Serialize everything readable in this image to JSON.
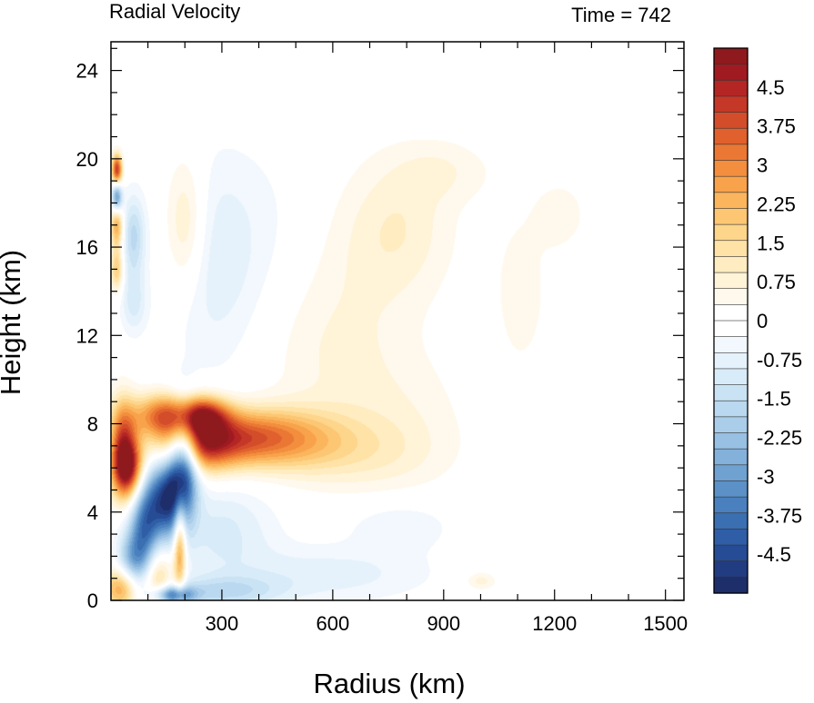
{
  "chart_data": {
    "type": "heatmap",
    "title": "Radial Velocity",
    "subtitle": "Time = 742",
    "xlabel": "Radius (km)",
    "ylabel": "Height (km)",
    "xlim": [
      0,
      1550
    ],
    "ylim": [
      0,
      25.3
    ],
    "x_ticks": [
      300,
      600,
      900,
      1200,
      1500
    ],
    "y_ticks": [
      0,
      4,
      8,
      12,
      16,
      20,
      24
    ],
    "colorbar": {
      "range": [
        -5.25,
        5.25
      ],
      "ticks": [
        4.5,
        3.75,
        3,
        2.25,
        1.5,
        0.75,
        0,
        -0.75,
        -1.5,
        -2.25,
        -3,
        -3.75,
        -4.5
      ],
      "colors": [
        "#1e2e6a",
        "#223c82",
        "#264c96",
        "#2f5ea6",
        "#3a6fb2",
        "#4a80bd",
        "#5b91c7",
        "#6fa1d1",
        "#84b1da",
        "#98c0e2",
        "#aacde9",
        "#bad8ef",
        "#c9e2f4",
        "#d8ebf8",
        "#e6f2fb",
        "#f2f8fd",
        "#ffffff",
        "#ffffff",
        "#fff9ed",
        "#fff3d8",
        "#ffecc0",
        "#fee2a6",
        "#fdd58b",
        "#fcc672",
        "#fab55d",
        "#f8a24b",
        "#f28e3d",
        "#ea7834",
        "#e0612d",
        "#d44d2a",
        "#c53827",
        "#b42624",
        "#a01b21",
        "#8e1a1e"
      ]
    },
    "features": [
      {
        "r": 45,
        "z": 6.0,
        "sr": 30,
        "sz": 1.0,
        "v": 4.6
      },
      {
        "r": 30,
        "z": 7.2,
        "sr": 25,
        "sz": 1.4,
        "v": 2.8
      },
      {
        "r": 150,
        "z": 8.4,
        "sr": 70,
        "sz": 0.7,
        "v": 3.3
      },
      {
        "r": 230,
        "z": 7.1,
        "sr": 75,
        "sz": 0.9,
        "v": 3.8
      },
      {
        "r": 250,
        "z": 8.4,
        "sr": 50,
        "sz": 0.6,
        "v": 3.0
      },
      {
        "r": 360,
        "z": 7.4,
        "sr": 100,
        "sz": 0.9,
        "v": 2.6
      },
      {
        "r": 500,
        "z": 7.3,
        "sr": 110,
        "sz": 1.0,
        "v": 1.6
      },
      {
        "r": 680,
        "z": 6.6,
        "sr": 150,
        "sz": 1.2,
        "v": 0.7
      },
      {
        "r": 90,
        "z": 3.0,
        "sr": 30,
        "sz": 1.8,
        "v": -3.8
      },
      {
        "r": 50,
        "z": 1.7,
        "sr": 28,
        "sz": 0.9,
        "v": -1.9
      },
      {
        "r": 150,
        "z": 4.6,
        "sr": 35,
        "sz": 1.3,
        "v": -4.2
      },
      {
        "r": 195,
        "z": 6.3,
        "sr": 28,
        "sz": 1.6,
        "v": -4.7
      },
      {
        "r": 120,
        "z": 1.0,
        "sr": 30,
        "sz": 1.3,
        "v": 2.6
      },
      {
        "r": 30,
        "z": 0.6,
        "sr": 35,
        "sz": 0.7,
        "v": 3.0
      },
      {
        "r": 185,
        "z": 2.6,
        "sr": 12,
        "sz": 1.6,
        "v": 3.2
      },
      {
        "r": 165,
        "z": 0.25,
        "sr": 40,
        "sz": 0.3,
        "v": -3.6
      },
      {
        "r": 300,
        "z": 0.4,
        "sr": 110,
        "sz": 0.5,
        "v": -1.4
      },
      {
        "r": 580,
        "z": 1.2,
        "sr": 200,
        "sz": 0.9,
        "v": -0.8
      },
      {
        "r": 300,
        "z": 3.2,
        "sr": 100,
        "sz": 1.5,
        "v": -1.0
      },
      {
        "r": 15,
        "z": 19.5,
        "sr": 10,
        "sz": 0.5,
        "v": 4.3
      },
      {
        "r": 15,
        "z": 18.3,
        "sr": 10,
        "sz": 0.5,
        "v": -3.4
      },
      {
        "r": 15,
        "z": 17.0,
        "sr": 12,
        "sz": 0.7,
        "v": 2.6
      },
      {
        "r": 15,
        "z": 15.0,
        "sr": 12,
        "sz": 0.7,
        "v": 2.0
      },
      {
        "r": 60,
        "z": 16.5,
        "sr": 22,
        "sz": 1.3,
        "v": -1.6
      },
      {
        "r": 60,
        "z": 13.5,
        "sr": 25,
        "sz": 1.0,
        "v": -1.0
      },
      {
        "r": 200,
        "z": 17.0,
        "sr": 40,
        "sz": 2.2,
        "v": 1.3
      },
      {
        "r": 270,
        "z": 15.0,
        "sr": 90,
        "sz": 3.5,
        "v": -0.7
      },
      {
        "r": 430,
        "z": 16.5,
        "sr": 150,
        "sz": 3.0,
        "v": -0.5
      },
      {
        "r": 620,
        "z": 15.5,
        "sr": 160,
        "sz": 3.0,
        "v": 0.5
      },
      {
        "r": 780,
        "z": 17.0,
        "sr": 100,
        "sz": 2.2,
        "v": 0.7
      },
      {
        "r": 900,
        "z": 19.5,
        "sr": 90,
        "sz": 1.0,
        "v": 0.5
      },
      {
        "r": 1110,
        "z": 14.0,
        "sr": 70,
        "sz": 3.5,
        "v": 0.4
      },
      {
        "r": 1220,
        "z": 17.5,
        "sr": 45,
        "sz": 1.0,
        "v": 0.5
      },
      {
        "r": 600,
        "z": 11.0,
        "sr": 130,
        "sz": 2.5,
        "v": 0.5
      },
      {
        "r": 780,
        "z": 8.5,
        "sr": 130,
        "sz": 2.0,
        "v": 0.45
      },
      {
        "r": 780,
        "z": 3.4,
        "sr": 100,
        "sz": 0.8,
        "v": -0.6
      },
      {
        "r": 1000,
        "z": 0.9,
        "sr": 30,
        "sz": 0.3,
        "v": 0.8
      }
    ],
    "grid": false
  }
}
